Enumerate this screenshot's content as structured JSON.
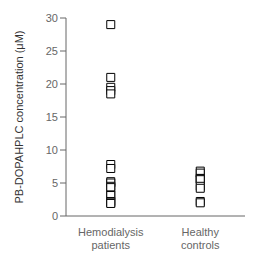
{
  "chart_data": {
    "type": "scatter",
    "categories": [
      "Hemodialysis\npatients",
      "Healthy\ncontrols"
    ],
    "values": [
      [
        29.0,
        21.0,
        19.5,
        19.0,
        18.5,
        7.8,
        7.2,
        5.2,
        5.0,
        4.5,
        4.3,
        3.2,
        3.1,
        2.2,
        2.0,
        1.9
      ],
      [
        6.8,
        6.5,
        5.7,
        5.6,
        5.5,
        4.5,
        4.2,
        2.2,
        2.0
      ]
    ],
    "y_label": "PB-DOPAHPLC concentration (μM)",
    "ylim": [
      0,
      30
    ],
    "yticks": [
      0,
      5,
      10,
      15,
      20,
      25,
      30
    ],
    "marker": "square",
    "color": "black"
  }
}
